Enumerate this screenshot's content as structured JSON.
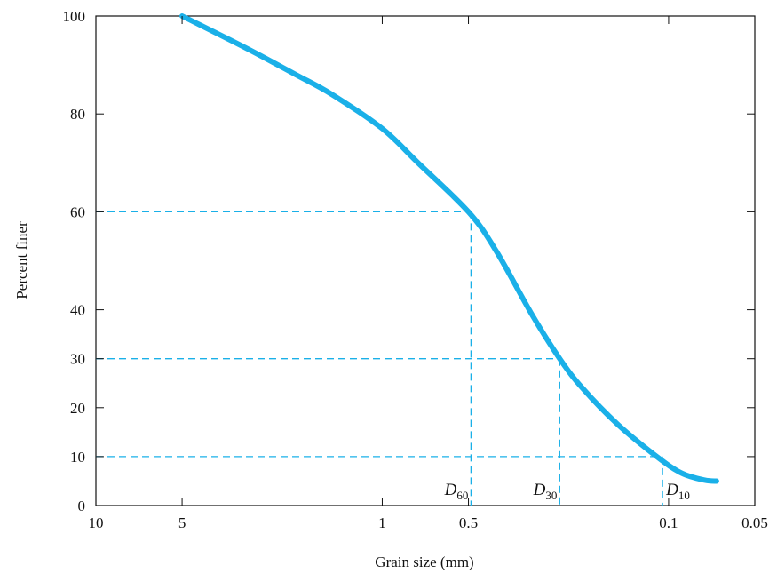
{
  "chart_data": {
    "type": "line",
    "xlabel": "Grain size (mm)",
    "ylabel": "Percent finer",
    "x_scale": "log",
    "x_reversed": true,
    "xlim": [
      10,
      0.05
    ],
    "ylim": [
      0,
      100
    ],
    "x_ticks": [
      {
        "value": 10,
        "label": "10"
      },
      {
        "value": 5,
        "label": "5"
      },
      {
        "value": 1,
        "label": "1"
      },
      {
        "value": 0.5,
        "label": "0.5"
      },
      {
        "value": 0.1,
        "label": "0.1"
      },
      {
        "value": 0.05,
        "label": "0.05"
      }
    ],
    "y_ticks": [
      {
        "value": 0,
        "label": "0"
      },
      {
        "value": 10,
        "label": "10"
      },
      {
        "value": 20,
        "label": "20"
      },
      {
        "value": 30,
        "label": "30"
      },
      {
        "value": 40,
        "label": "40"
      },
      {
        "value": 60,
        "label": "60"
      },
      {
        "value": 80,
        "label": "80"
      },
      {
        "value": 100,
        "label": "100"
      }
    ],
    "series": [
      {
        "color": "#1ab0e8",
        "x": [
          5,
          3,
          2,
          1.5,
          1,
          0.75,
          0.5,
          0.4,
          0.3,
          0.24,
          0.2,
          0.15,
          0.11,
          0.09,
          0.075,
          0.068
        ],
        "y": [
          100,
          93.5,
          88,
          84,
          77,
          70,
          60,
          52,
          39,
          30,
          24,
          16.5,
          10,
          6.6,
          5.2,
          5
        ]
      }
    ],
    "reference_lines": [
      {
        "label": "D",
        "subscript": "60",
        "percent": 60,
        "size_mm": 0.49
      },
      {
        "label": "D",
        "subscript": "30",
        "percent": 30,
        "size_mm": 0.24
      },
      {
        "label": "D",
        "subscript": "10",
        "percent": 10,
        "size_mm": 0.105
      }
    ],
    "reference_color": "#1ab0e8",
    "grid": false
  }
}
